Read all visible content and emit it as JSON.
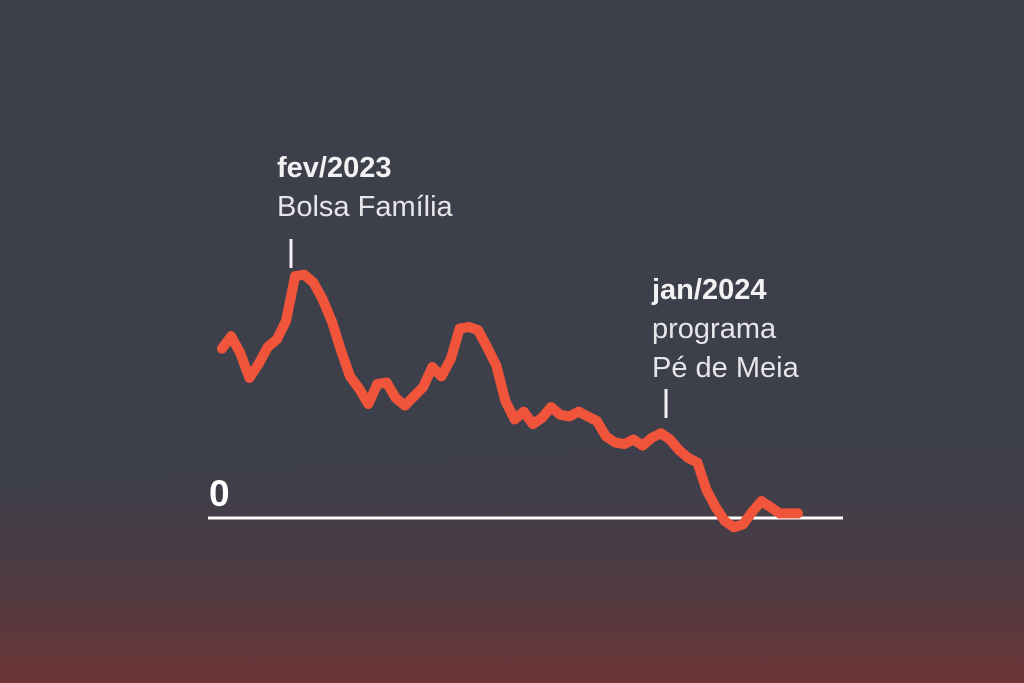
{
  "colors": {
    "background_top": "#3d3f4a",
    "background_bottom": "#6e3436",
    "series": "#f0553b",
    "baseline": "#ffffff",
    "text": "#f2f2f4"
  },
  "chart_data": {
    "type": "line",
    "title": "",
    "xlabel": "",
    "ylabel": "",
    "ylim": [
      -2,
      16
    ],
    "baseline_label": "0",
    "series": [
      {
        "name": "series",
        "values": [
          11,
          11.8,
          10.7,
          9.1,
          10,
          11.1,
          11.6,
          12.8,
          15.7,
          15.8,
          15.3,
          14.2,
          12.8,
          10.9,
          9.2,
          8.4,
          7.4,
          8.7,
          8.8,
          7.8,
          7.3,
          7.9,
          8.5,
          9.8,
          9.2,
          10.3,
          12.3,
          12.4,
          12.2,
          11.1,
          9.9,
          7.6,
          6.4,
          6.9,
          6.1,
          6.5,
          7.2,
          6.7,
          6.6,
          6.9,
          6.6,
          6.3,
          5.3,
          4.9,
          4.8,
          5.1,
          4.7,
          5.2,
          5.5,
          5.1,
          4.4,
          3.9,
          3.6,
          1.8,
          0.7,
          -0.2,
          -0.6,
          -0.4,
          0.4,
          1.1,
          0.7,
          0.3,
          0.3,
          0.3
        ]
      }
    ],
    "annotations": [
      {
        "date": "fev/2023",
        "text": [
          "Bolsa Família"
        ]
      },
      {
        "date": "jan/2024",
        "text": [
          "programa",
          "Pé de Meia"
        ]
      }
    ]
  }
}
